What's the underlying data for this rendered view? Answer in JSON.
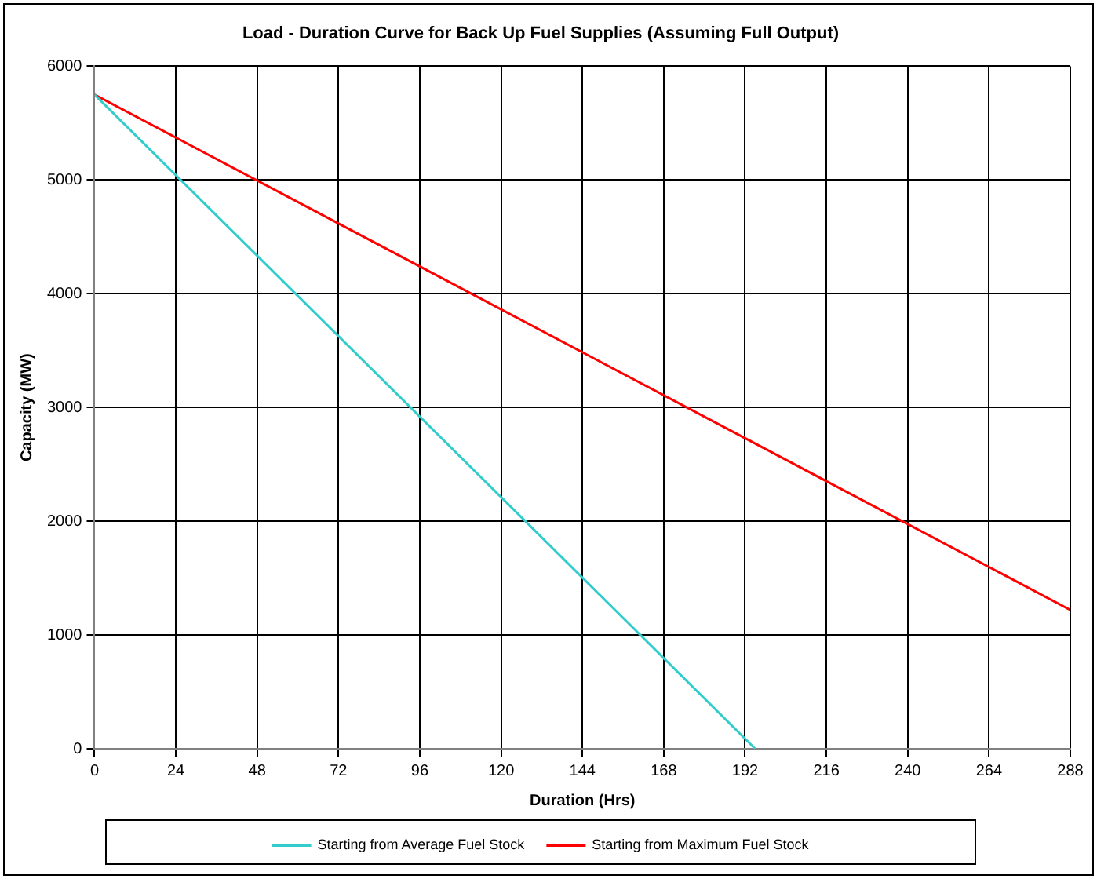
{
  "chart_data": {
    "type": "line",
    "title": "Load - Duration Curve for Back Up Fuel Supplies (Assuming Full Output)",
    "xlabel": "Duration (Hrs)",
    "ylabel": "Capacity (MW)",
    "series": [
      {
        "name": "Starting from Average Fuel Stock",
        "color": "#33cccc",
        "x": [
          0,
          195
        ],
        "values": [
          5750,
          0
        ]
      },
      {
        "name": "Starting from Maximum Fuel Stock",
        "color": "#ff0000",
        "x": [
          0,
          288
        ],
        "values": [
          5750,
          1220
        ]
      }
    ],
    "xlim": [
      0,
      288
    ],
    "xticks": [
      0,
      24,
      48,
      72,
      96,
      120,
      144,
      168,
      192,
      216,
      240,
      264,
      288
    ],
    "ylim": [
      0,
      6000
    ],
    "yticks": [
      0,
      1000,
      2000,
      3000,
      4000,
      5000,
      6000
    ],
    "grid": true,
    "legend": "bottom",
    "marker": "none",
    "line_style": "solid"
  }
}
